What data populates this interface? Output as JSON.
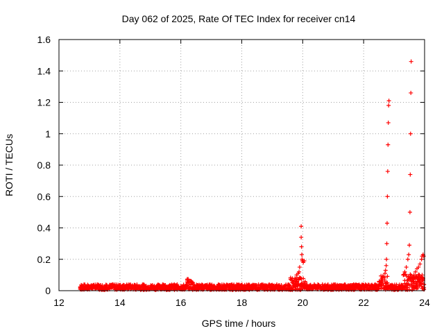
{
  "chart_data": {
    "type": "scatter",
    "title": "Day 062 of 2025, Rate Of TEC Index for receiver cn14",
    "xlabel": "GPS time / hours",
    "ylabel": "ROTI / TECUs",
    "xlim": [
      12,
      24
    ],
    "ylim": [
      0,
      1.6
    ],
    "xticks": [
      "12",
      "14",
      "16",
      "18",
      "20",
      "22",
      "24"
    ],
    "yticks": [
      "0",
      "0.2",
      "0.4",
      "0.6",
      "0.8",
      "1",
      "1.2",
      "1.4",
      "1.6"
    ],
    "grid": true,
    "marker": "+",
    "color": "#ff0000",
    "series": [
      {
        "x": [
          19.95,
          19.95,
          19.96,
          19.97,
          19.98,
          19.99,
          20.0,
          20.02,
          20.05,
          19.7,
          19.75,
          19.8,
          19.85,
          19.88,
          19.9,
          22.6,
          22.65,
          22.7,
          22.72,
          22.74,
          22.75,
          22.76,
          22.77,
          22.78,
          22.79,
          22.8,
          22.81,
          22.82,
          22.83,
          23.3,
          23.35,
          23.4,
          23.45,
          23.48,
          23.5,
          23.52,
          23.53,
          23.54,
          23.55,
          23.56,
          23.6,
          23.65,
          23.7,
          23.75,
          23.8,
          23.85,
          23.9,
          23.92,
          23.95,
          23.97
        ],
        "y": [
          0.41,
          0.34,
          0.28,
          0.23,
          0.2,
          0.19,
          0.19,
          0.18,
          0.19,
          0.06,
          0.08,
          0.1,
          0.11,
          0.12,
          0.15,
          0.07,
          0.09,
          0.11,
          0.13,
          0.16,
          0.2,
          0.3,
          0.43,
          0.6,
          0.76,
          0.93,
          1.07,
          1.18,
          1.21,
          0.1,
          0.12,
          0.15,
          0.2,
          0.23,
          0.29,
          0.5,
          0.74,
          1.0,
          1.26,
          1.46,
          0.08,
          0.1,
          0.12,
          0.14,
          0.15,
          0.17,
          0.2,
          0.22,
          0.23,
          0.22
        ]
      }
    ]
  }
}
